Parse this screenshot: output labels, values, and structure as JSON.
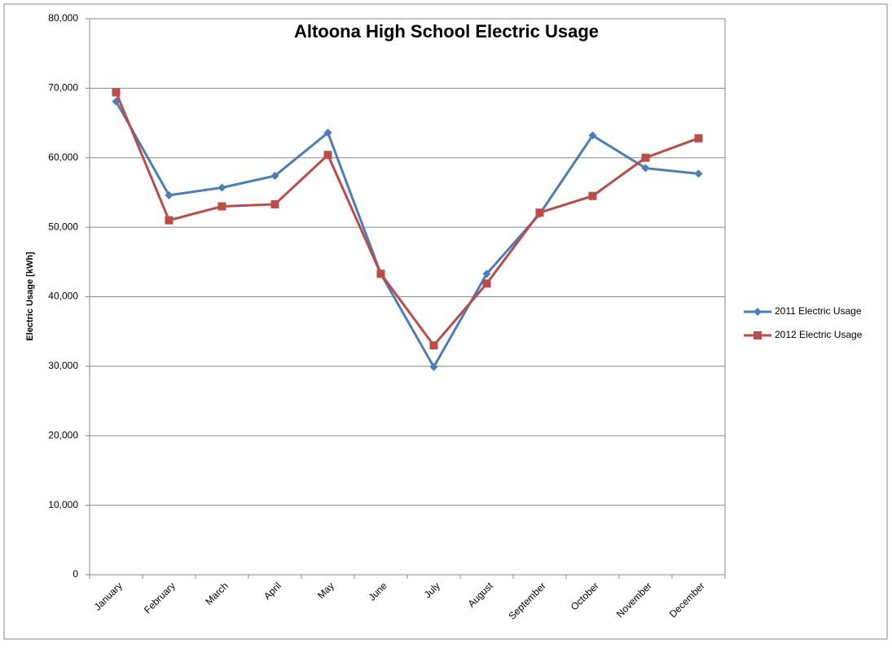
{
  "chart_data": {
    "type": "line",
    "title": "Altoona High School Electric Usage",
    "y_label": "Electric Usage [kWh]",
    "categories": [
      "January",
      "February",
      "March",
      "April",
      "May",
      "June",
      "July",
      "August",
      "September",
      "October",
      "November",
      "December"
    ],
    "series": [
      {
        "name": "2011 Electric Usage",
        "color": "#4a7ebb",
        "marker": "diamond",
        "values": [
          68100,
          54600,
          55700,
          57400,
          63600,
          43300,
          29900,
          43300,
          51900,
          63200,
          58500,
          57700
        ]
      },
      {
        "name": "2012 Electric Usage",
        "color": "#be4b48",
        "marker": "square",
        "values": [
          69400,
          51000,
          53000,
          53300,
          60400,
          43300,
          33000,
          41900,
          52100,
          54500,
          60000,
          62800
        ]
      }
    ],
    "ylim": [
      0,
      80000
    ],
    "yticks": [
      0,
      {
        "value": 10000,
        "label": "10,000"
      },
      {
        "value": 20000,
        "label": "20,000"
      },
      {
        "value": 30000,
        "label": "30,000"
      },
      {
        "value": 40000,
        "label": "40,000"
      },
      {
        "value": 50000,
        "label": "50,000"
      },
      {
        "value": 60000,
        "label": "60,000"
      },
      {
        "value": 70000,
        "label": "70,000"
      },
      {
        "value": 80000,
        "label": "80,000"
      }
    ],
    "grid": true,
    "legend": "right"
  }
}
